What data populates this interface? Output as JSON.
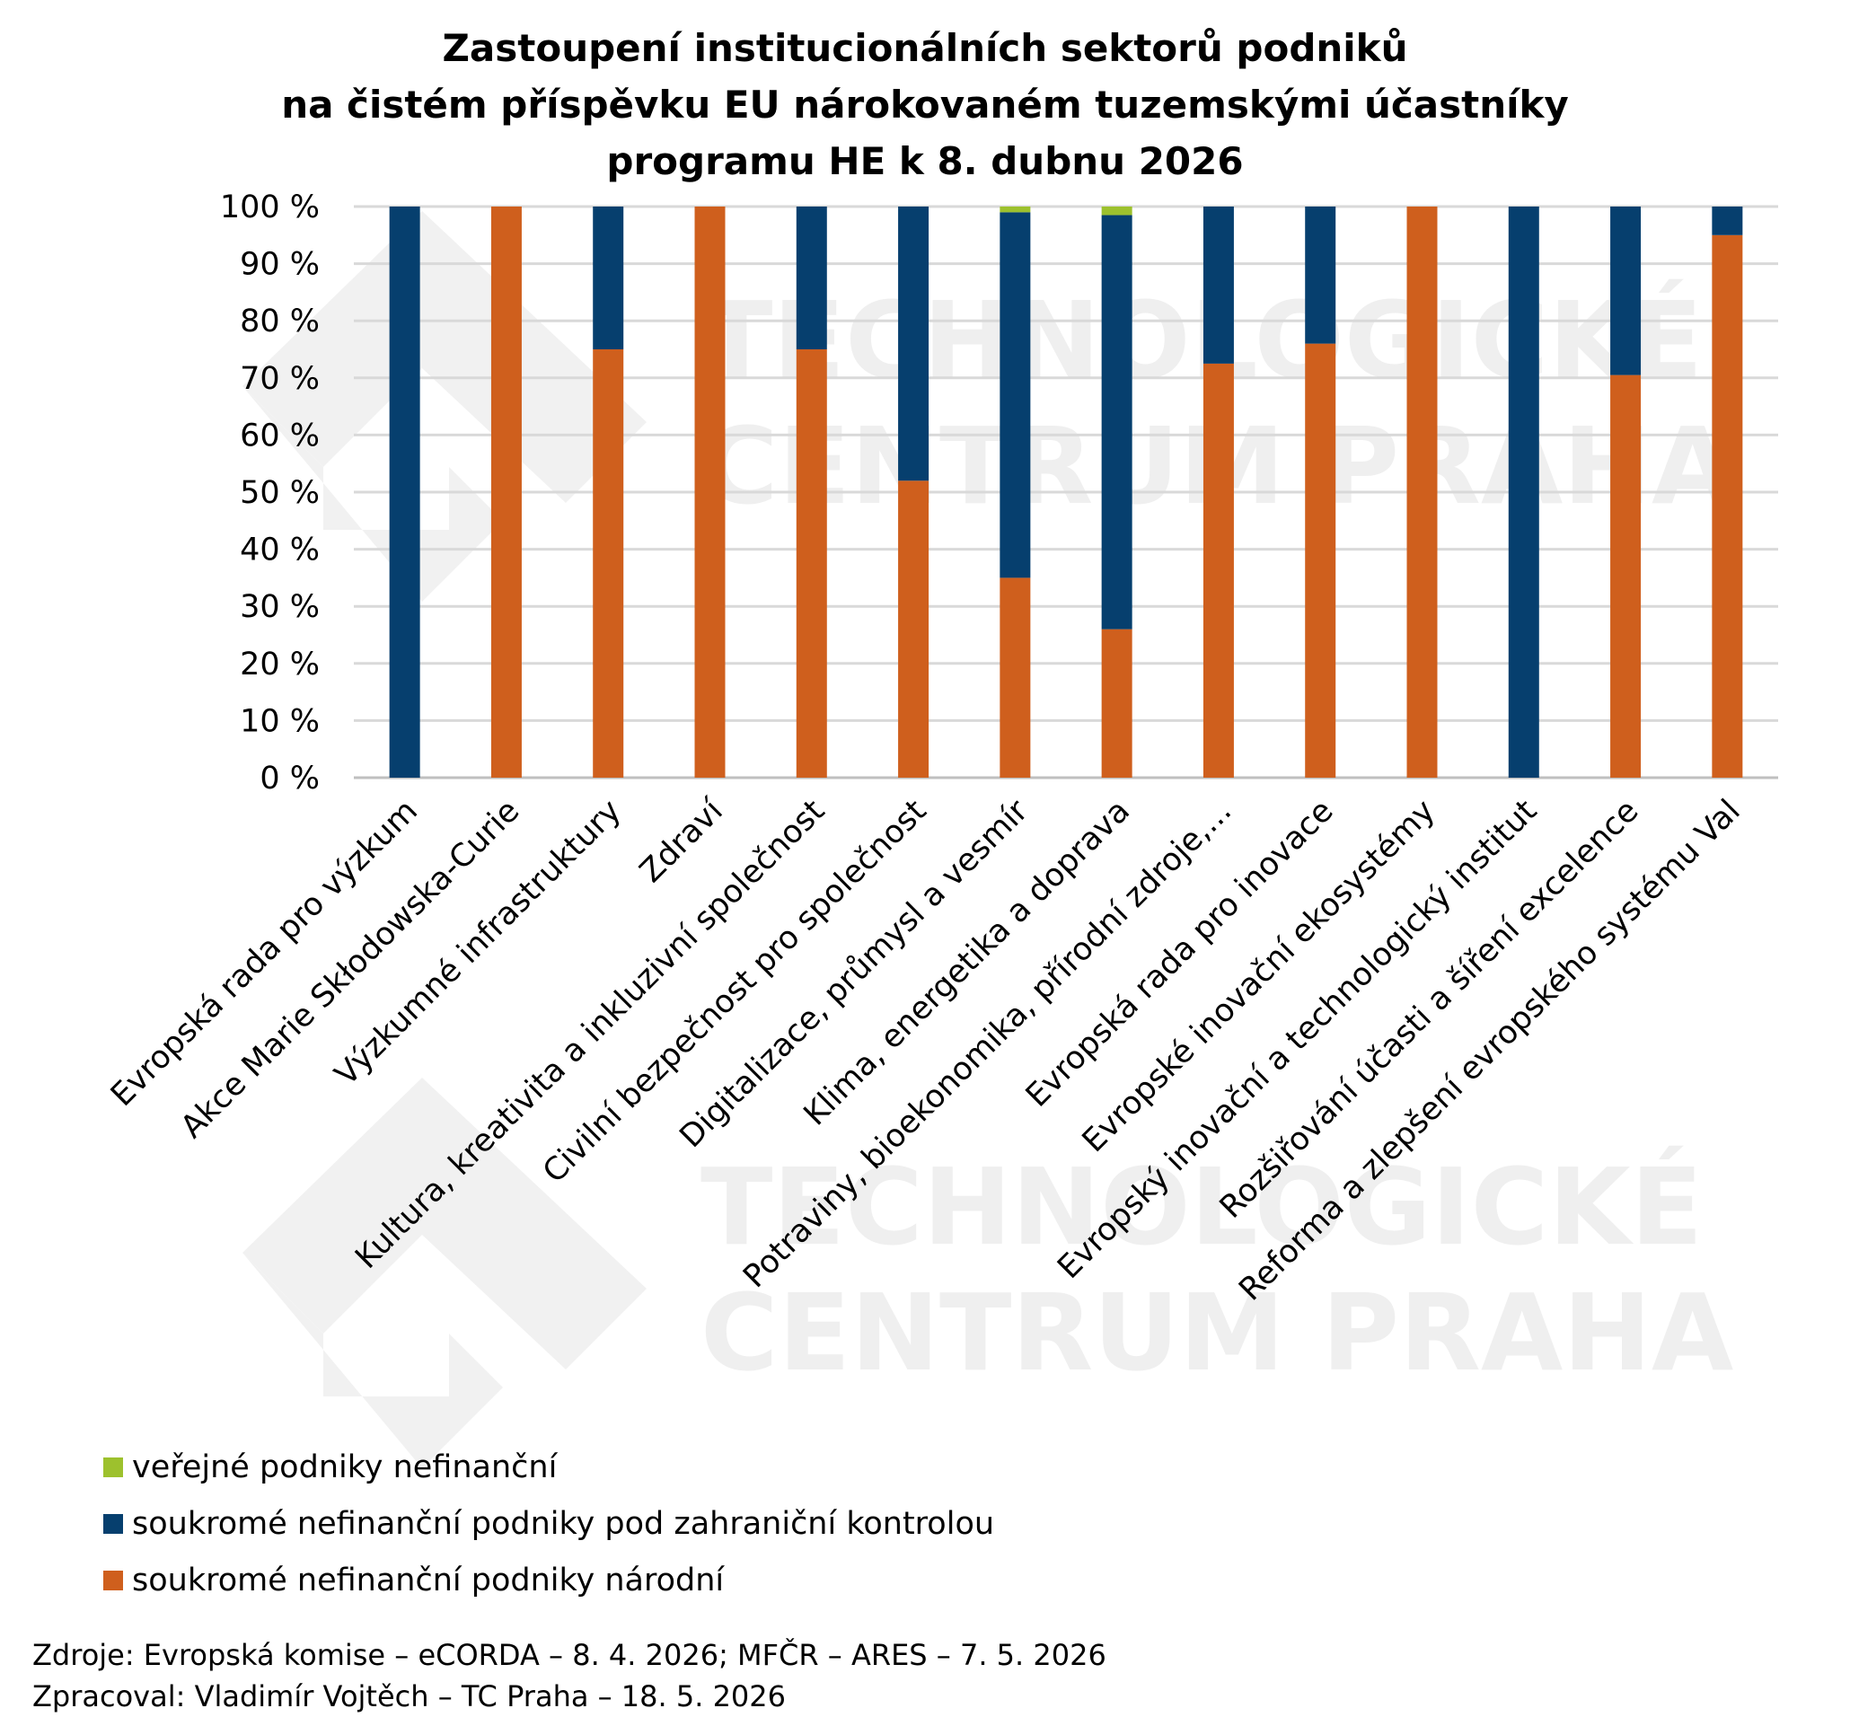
{
  "title_lines": [
    "Zastoupení institucionálních sektorů podniků",
    "na čistém příspěvku EU nárokovaném tuzemskými účastníky",
    "programu HE k 8. dubnu 2026"
  ],
  "watermark": {
    "line1": "TECHNOLOGICKÉ",
    "line2": "CENTRUM PRAHA"
  },
  "chart_data": {
    "type": "bar",
    "stacked": true,
    "title": "Zastoupení institucionálních sektorů podniků na čistém příspěvku EU nárokovaném tuzemskými účastníky programu HE k 8. dubnu 2026",
    "categories": [
      "Evropská rada pro výzkum",
      "Akce Marie Skłodowska-Curie",
      "Výzkumné infrastruktury",
      "Zdraví",
      "Kultura, kreativita a inkluzivní společnost",
      "Civilní bezpečnost pro společnost",
      "Digitalizace, průmysl a vesmír",
      "Klima, energetika a doprava",
      "Potraviny, bioekonomika, přírodní zdroje,...",
      "Evropská rada pro inovace",
      "Evropské inovační ekosystémy",
      "Evropský inovační a technologický institut",
      "Rozšiřování účasti a šíření excelence",
      "Reforma a zlepšení evropského systému Val"
    ],
    "series": [
      {
        "name": "soukromé nefinanční podniky národní",
        "color": "#cf5f1d",
        "values": [
          0,
          100,
          75,
          100,
          75,
          52,
          35,
          26,
          72.5,
          76,
          100,
          0,
          70.5,
          95
        ]
      },
      {
        "name": "soukromé nefinanční podniky pod zahraniční kontrolou",
        "color": "#063f6e",
        "values": [
          100,
          0,
          25,
          0,
          25,
          48,
          64,
          72.5,
          27.5,
          24,
          0,
          100,
          29.5,
          5
        ]
      },
      {
        "name": "veřejné podniky nefinanční",
        "color": "#9dc12d",
        "values": [
          0,
          0,
          0,
          0,
          0,
          0,
          1,
          1.5,
          0,
          0,
          0,
          0,
          0,
          0
        ]
      }
    ],
    "y_ticks": [
      "0 %",
      "10 %",
      "20 %",
      "30 %",
      "40 %",
      "50 %",
      "60 %",
      "70 %",
      "80 %",
      "90 %",
      "100 %"
    ],
    "ylim": [
      0,
      100
    ],
    "grid": true,
    "legend_position": "bottom-left",
    "legend_order": [
      "veřejné podniky nefinanční",
      "soukromé nefinanční podniky pod zahraniční kontrolou",
      "soukromé nefinanční podniky národní"
    ],
    "gridline_color": "#d9d9d9"
  },
  "footer": {
    "sources": "Zdroje: Evropská komise – eCORDA – 8. 4. 2026; MFČR – ARES – 7. 5. 2026",
    "processed": "Zpracoval: Vladimír Vojtěch – TC Praha – 18. 5. 2026"
  }
}
